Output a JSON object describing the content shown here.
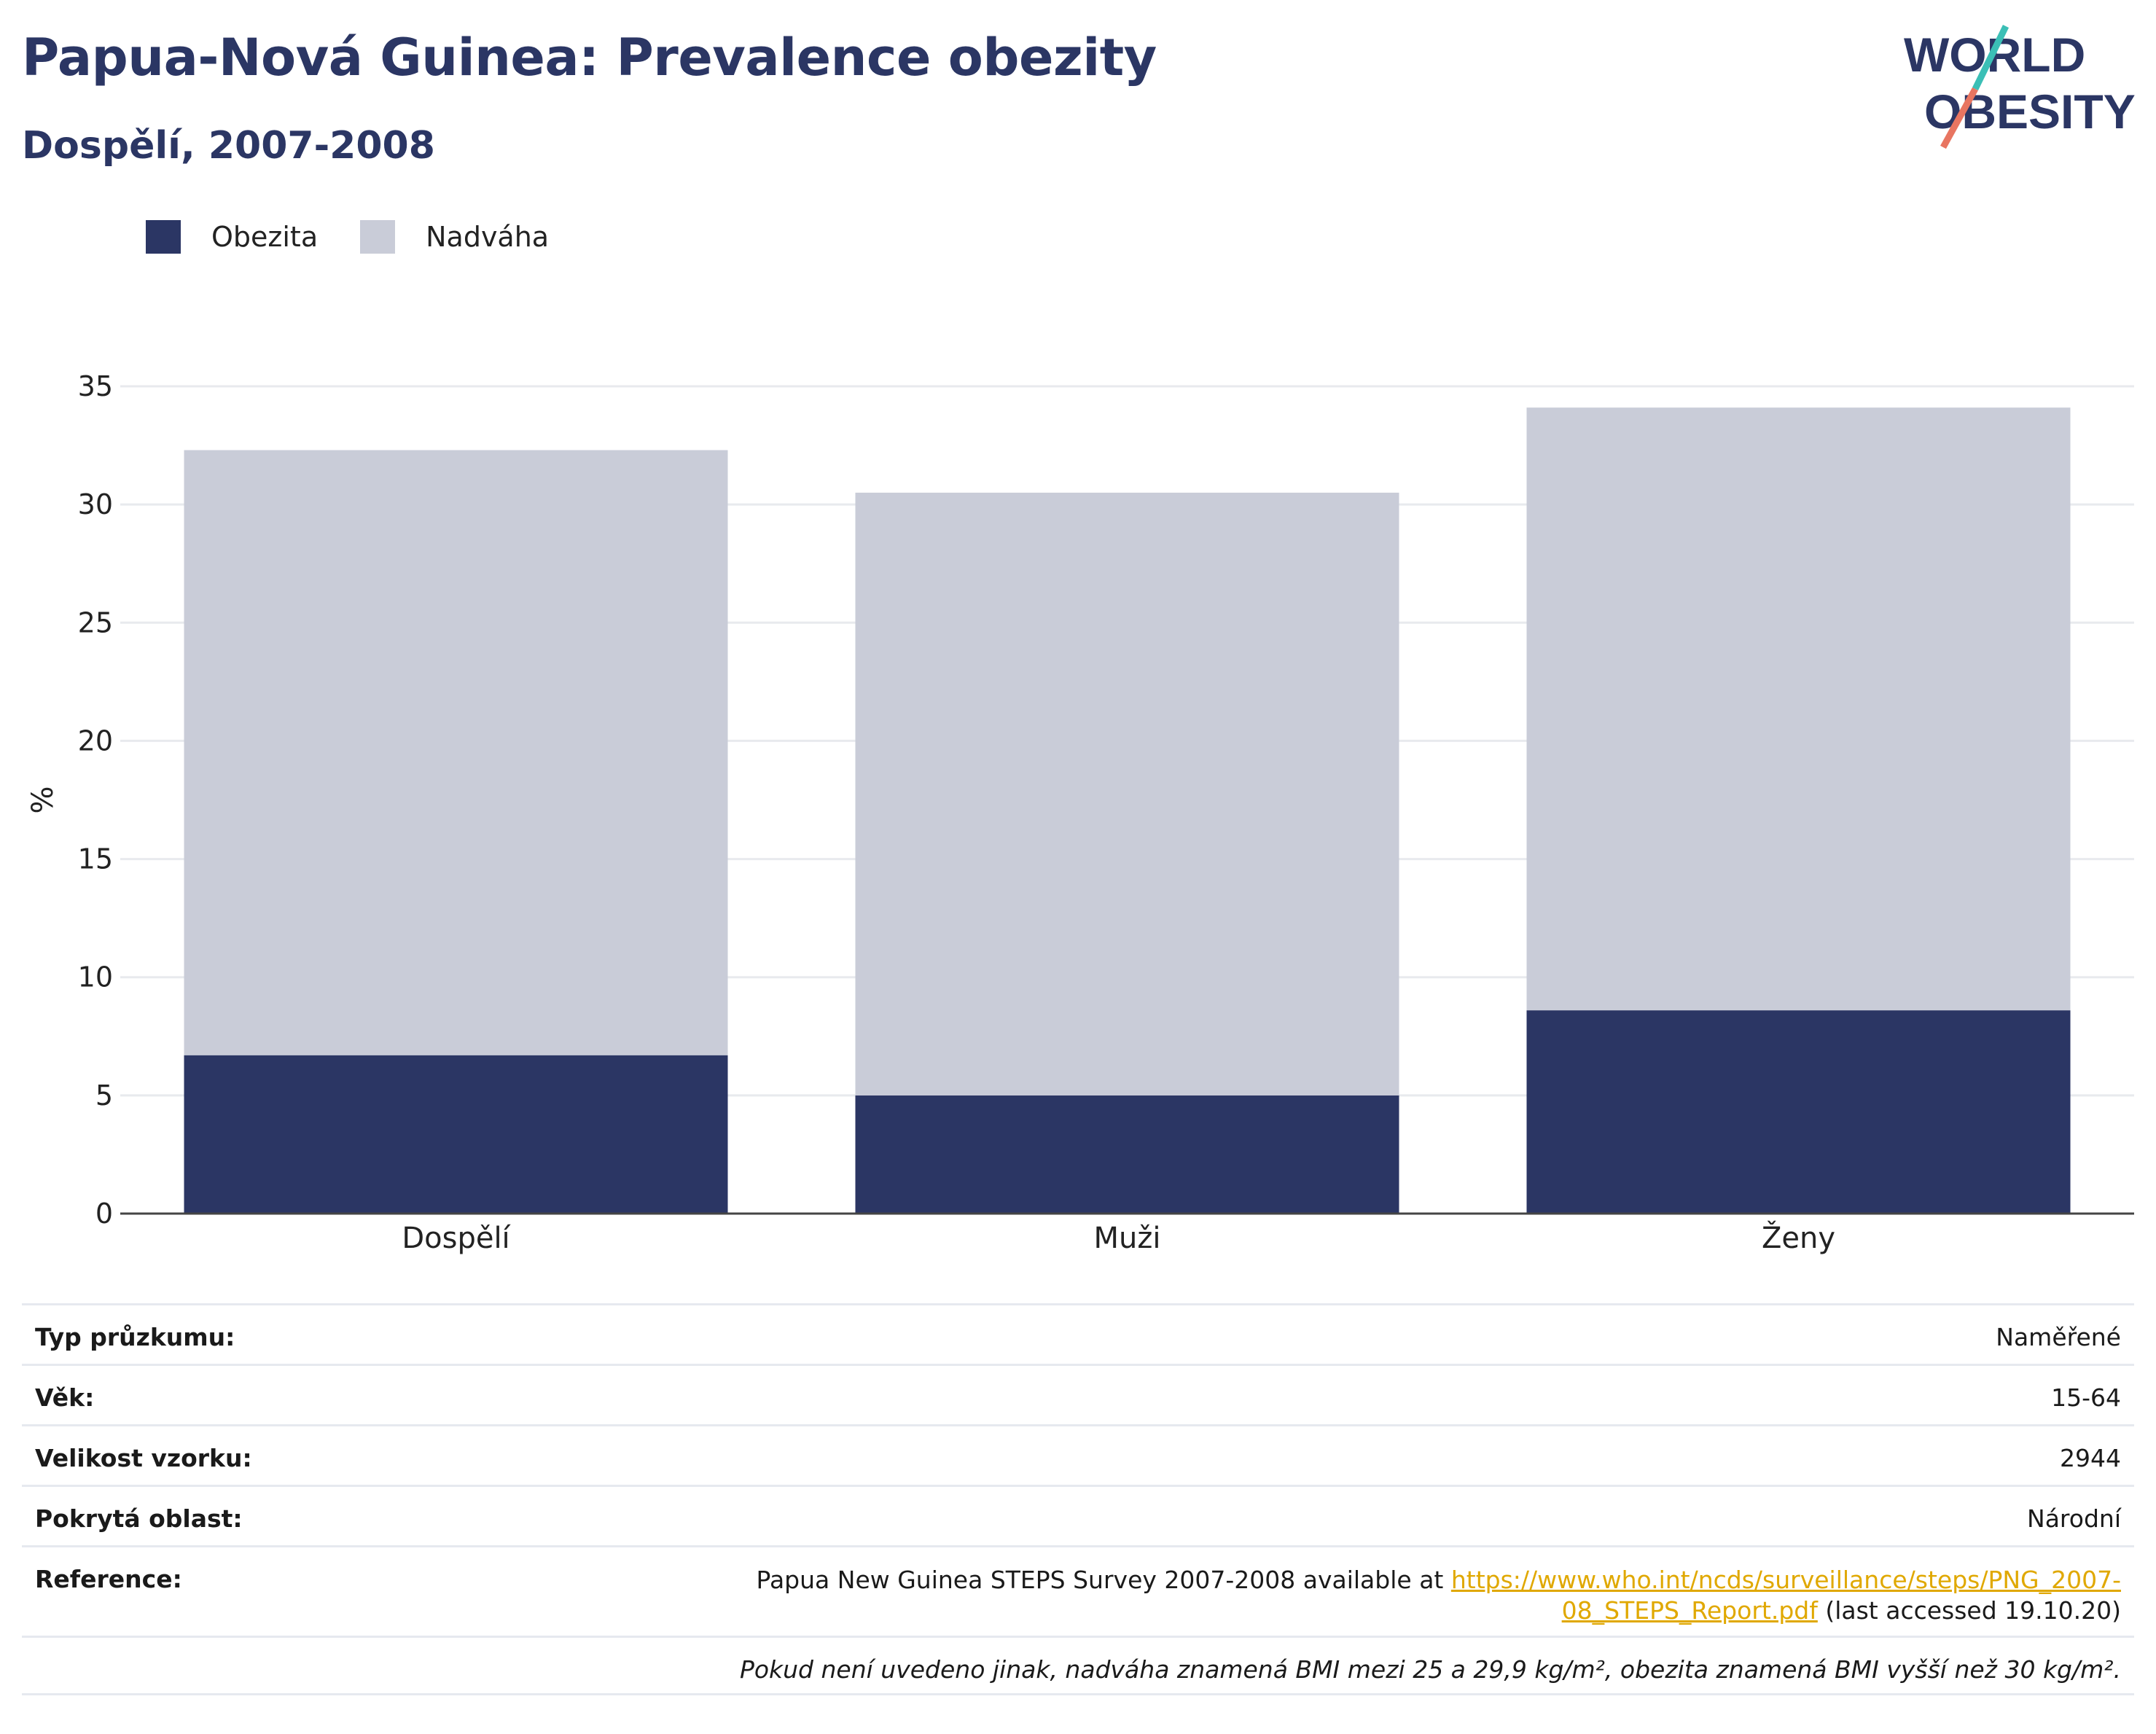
{
  "header": {
    "title": "Papua-Nová Guinea: Prevalence obezity",
    "subtitle": "Dospělí, 2007-2008"
  },
  "logo": {
    "line1": "WORLD",
    "line2": "OBESITY"
  },
  "colors": {
    "obesity": "#2b3664",
    "overweight": "#c9ccd8",
    "title": "#2b3664",
    "link": "#e0a800",
    "logo_teal": "#3bbfb6",
    "logo_coral": "#e87561"
  },
  "chart_data": {
    "type": "bar",
    "stacked": true,
    "categories": [
      "Dospělí",
      "Muži",
      "Ženy"
    ],
    "series": [
      {
        "name": "Obezita",
        "values": [
          6.7,
          5.0,
          8.6
        ]
      },
      {
        "name": "Nadváha",
        "values": [
          25.6,
          25.5,
          25.5
        ]
      }
    ],
    "ylabel": "%",
    "ylim": [
      0,
      35
    ],
    "yticks": [
      0,
      5,
      10,
      15,
      20,
      25,
      30,
      35
    ],
    "grid": true,
    "legend_position": "top-left"
  },
  "info": {
    "survey_type_label": "Typ průzkumu:",
    "survey_type_value": "Naměřené",
    "age_label": "Věk:",
    "age_value": "15-64",
    "sample_label": "Velikost vzorku:",
    "sample_value": "2944",
    "area_label": "Pokrytá oblast:",
    "area_value": "Národní",
    "reference_label": "Reference:",
    "reference_text": "Papua New Guinea STEPS Survey 2007-2008 available at",
    "reference_link_1": "https://www.who.int/ncds/surveillance/steps/PNG_2007-",
    "reference_link_2": "08_STEPS_Report.pdf",
    "reference_suffix": "(last accessed 19.10.20)",
    "note": "Pokud není uvedeno jinak, nadváha znamená BMI mezi 25 a 29,9 kg/m², obezita znamená BMI vyšší než 30 kg/m²."
  }
}
